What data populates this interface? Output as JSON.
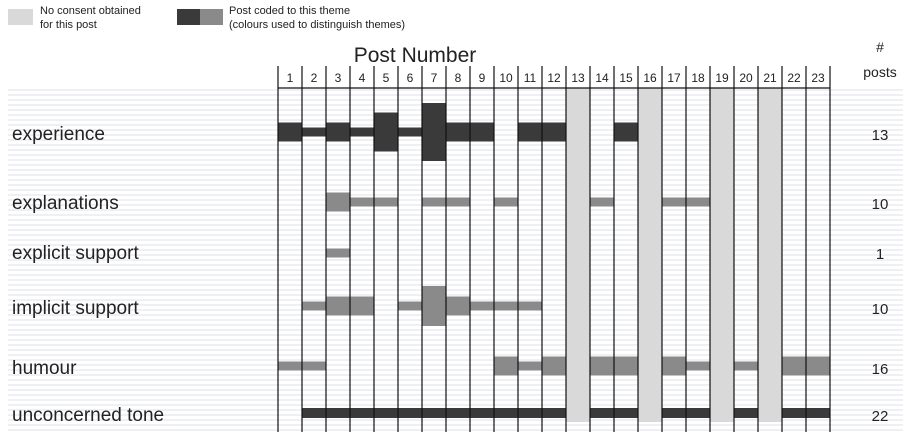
{
  "legend": {
    "no_consent_label_line1": "No consent obtained",
    "no_consent_label_line2": "for this post",
    "coded_label_line1": "Post coded to this theme",
    "coded_label_line2": "(colours used to distinguish themes)",
    "no_consent_color": "#d9d9d9",
    "coded_colors": [
      "#3a3a3a",
      "#8a8a8a"
    ]
  },
  "chart_data": {
    "type": "heatmap",
    "title": "Post Number",
    "count_header_line1": "#",
    "count_header_line2": "posts",
    "posts": [
      "1",
      "2",
      "3",
      "4",
      "5",
      "6",
      "7",
      "8",
      "9",
      "10",
      "11",
      "12",
      "13",
      "14",
      "15",
      "16",
      "17",
      "18",
      "19",
      "20",
      "21",
      "22",
      "23"
    ],
    "no_consent_posts": [
      13,
      16,
      19,
      21
    ],
    "themes": [
      {
        "name": "experience",
        "count": "13",
        "color": "#3a3a3a",
        "posts": [
          1,
          2,
          3,
          4,
          5,
          6,
          7,
          8,
          9,
          11,
          12,
          15
        ],
        "heavy_posts": [
          1,
          3,
          5,
          7,
          8,
          9,
          11,
          12,
          15
        ],
        "peak_posts": [
          5,
          7
        ]
      },
      {
        "name": "explanations",
        "count": "10",
        "color": "#8a8a8a",
        "posts": [
          3,
          4,
          5,
          7,
          8,
          10,
          14,
          17,
          18
        ],
        "heavy_posts": [
          3
        ],
        "peak_posts": []
      },
      {
        "name": "explicit support",
        "count": "1",
        "color": "#8a8a8a",
        "posts": [
          3
        ],
        "heavy_posts": [],
        "peak_posts": []
      },
      {
        "name": "implicit support",
        "count": "10",
        "color": "#8a8a8a",
        "posts": [
          2,
          3,
          4,
          6,
          7,
          8,
          9,
          10,
          11
        ],
        "heavy_posts": [
          3,
          4,
          7,
          8
        ],
        "peak_posts": [
          7
        ]
      },
      {
        "name": "humour",
        "count": "16",
        "color": "#8a8a8a",
        "posts": [
          1,
          2,
          10,
          11,
          12,
          14,
          15,
          17,
          18,
          20,
          22,
          23
        ],
        "heavy_posts": [
          10,
          12,
          14,
          15,
          17,
          22,
          23
        ],
        "peak_posts": []
      },
      {
        "name": "unconcerned  tone",
        "count": "22",
        "color": "#3a3a3a",
        "posts": [
          2,
          3,
          4,
          5,
          6,
          7,
          8,
          9,
          10,
          11,
          12,
          14,
          15,
          17,
          18,
          20,
          22,
          23
        ],
        "heavy_posts": [],
        "peak_posts": []
      }
    ]
  }
}
